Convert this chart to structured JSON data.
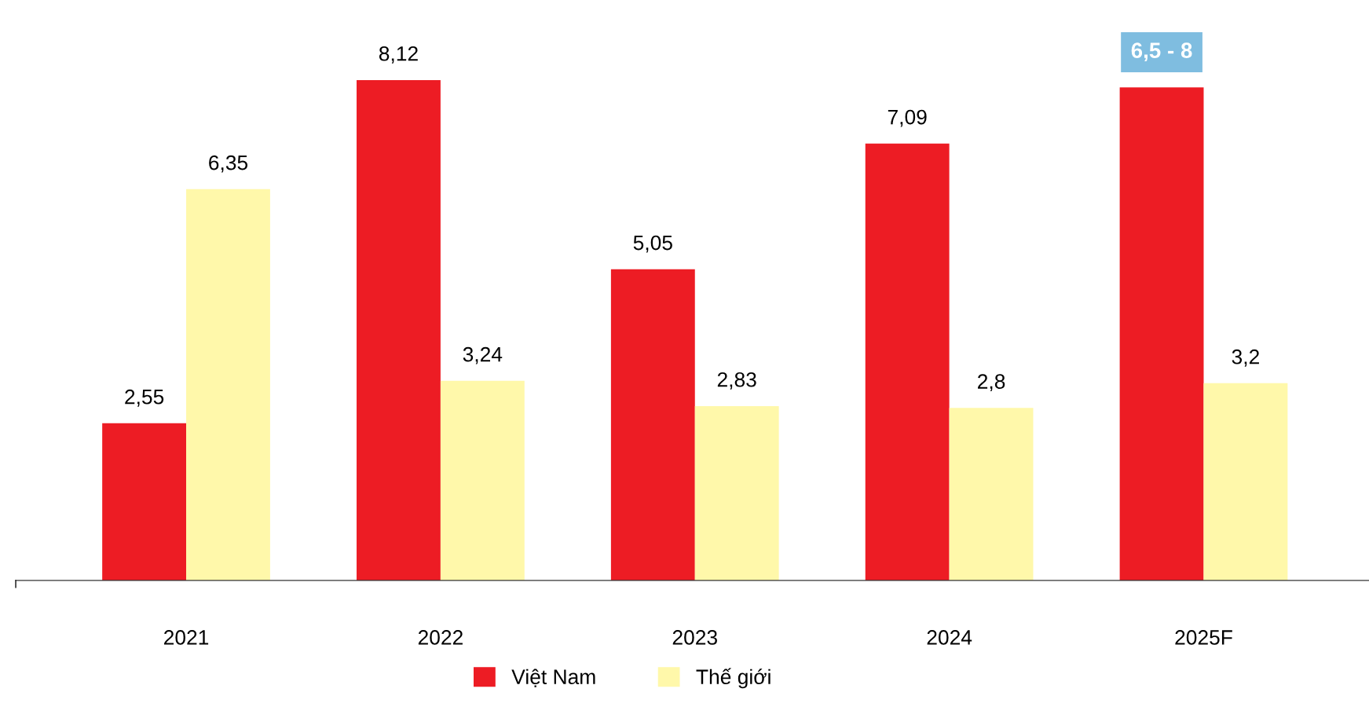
{
  "chart_data": {
    "type": "bar",
    "categories": [
      "2021",
      "2022",
      "2023",
      "2024",
      "2025F"
    ],
    "series": [
      {
        "name": "Việt Nam",
        "color": "#ed1c24",
        "values": [
          2.55,
          8.12,
          5.05,
          7.09,
          8
        ],
        "value_labels": [
          "2,55",
          "8,12",
          "5,05",
          "7,09",
          null
        ]
      },
      {
        "name": "Thế giới",
        "color": "#fff8aa",
        "values": [
          6.35,
          3.24,
          2.83,
          2.8,
          3.2
        ],
        "value_labels": [
          "6,35",
          "3,24",
          "2,83",
          "2,8",
          "3,2"
        ]
      }
    ],
    "annotations": [
      {
        "text": "6,5 - 8",
        "x": "2025F",
        "y": 8
      }
    ],
    "legend": "bottom"
  }
}
